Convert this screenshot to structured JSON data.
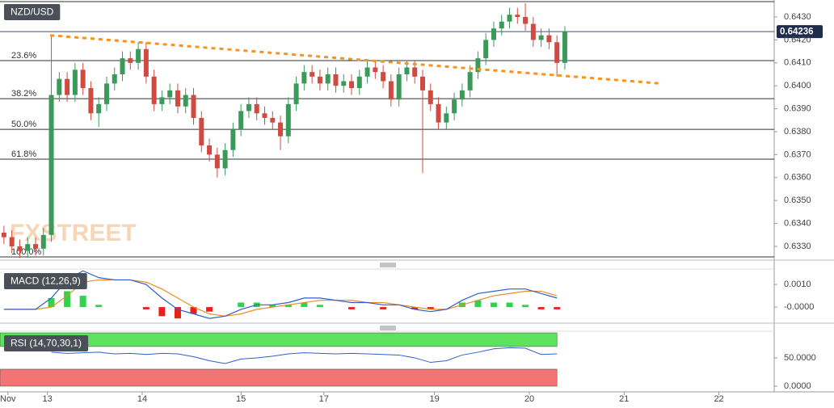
{
  "chart_data": [
    {
      "type": "candlestick",
      "title": "NZD/USD",
      "watermark": "FXSTREET",
      "x": [
        1,
        3,
        5,
        7,
        9,
        11,
        13,
        15,
        17,
        19,
        21,
        23,
        25,
        27,
        29,
        31,
        33,
        35,
        37,
        39,
        41,
        43,
        45,
        47,
        49,
        51,
        53,
        55,
        57,
        59,
        61,
        63,
        65,
        67,
        69,
        71,
        73,
        75,
        77,
        79,
        81,
        83,
        85,
        87,
        89,
        91,
        93,
        95,
        97,
        99,
        101,
        103,
        105,
        107,
        109,
        111,
        113,
        115,
        117,
        119,
        121,
        123,
        125,
        127,
        129,
        131,
        133,
        135,
        137,
        139,
        141,
        143
      ],
      "open": [
        0.6336,
        0.6334,
        0.633,
        0.6328,
        0.6331,
        0.6329,
        0.6335,
        0.6396,
        0.6403,
        0.6396,
        0.6407,
        0.6399,
        0.6388,
        0.6392,
        0.6401,
        0.6405,
        0.6412,
        0.641,
        0.6416,
        0.6404,
        0.6392,
        0.6395,
        0.6398,
        0.6391,
        0.6396,
        0.6386,
        0.6374,
        0.637,
        0.6364,
        0.6372,
        0.6381,
        0.6389,
        0.6392,
        0.6388,
        0.6386,
        0.6384,
        0.6378,
        0.6392,
        0.6401,
        0.6406,
        0.6404,
        0.6401,
        0.6405,
        0.64,
        0.6402,
        0.6399,
        0.6404,
        0.6408,
        0.6406,
        0.6402,
        0.6394,
        0.6405,
        0.6408,
        0.6404,
        0.6398,
        0.6392,
        0.6384,
        0.6388,
        0.6394,
        0.6398,
        0.6406,
        0.6412,
        0.642,
        0.6425,
        0.6428,
        0.6431,
        0.643,
        0.6427,
        0.642,
        0.6422,
        0.6419,
        0.641
      ],
      "high": [
        0.6339,
        0.6337,
        0.6333,
        0.6334,
        0.6334,
        0.6338,
        0.6422,
        0.6406,
        0.6406,
        0.641,
        0.641,
        0.6402,
        0.6395,
        0.6404,
        0.6408,
        0.6415,
        0.6415,
        0.6419,
        0.6419,
        0.6407,
        0.6398,
        0.6401,
        0.6401,
        0.6399,
        0.6399,
        0.6389,
        0.6377,
        0.6373,
        0.6375,
        0.6384,
        0.6392,
        0.6395,
        0.6395,
        0.6391,
        0.6389,
        0.6387,
        0.6395,
        0.6404,
        0.6409,
        0.6409,
        0.6407,
        0.6408,
        0.6408,
        0.6405,
        0.6405,
        0.6407,
        0.6411,
        0.6411,
        0.6409,
        0.6405,
        0.6408,
        0.6411,
        0.6411,
        0.6407,
        0.6401,
        0.6395,
        0.6391,
        0.6397,
        0.6401,
        0.6409,
        0.6415,
        0.6423,
        0.6428,
        0.6431,
        0.6434,
        0.6434,
        0.6436,
        0.643,
        0.6425,
        0.6425,
        0.6422,
        0.6426
      ],
      "low": [
        0.6331,
        0.6327,
        0.6325,
        0.6325,
        0.6326,
        0.6326,
        0.6332,
        0.6393,
        0.6393,
        0.6393,
        0.6396,
        0.6385,
        0.6382,
        0.6389,
        0.6398,
        0.6402,
        0.6407,
        0.6407,
        0.6401,
        0.6389,
        0.6389,
        0.6392,
        0.6388,
        0.6388,
        0.6383,
        0.6371,
        0.6367,
        0.636,
        0.6361,
        0.6369,
        0.6378,
        0.6386,
        0.6385,
        0.6383,
        0.6381,
        0.6372,
        0.6375,
        0.6389,
        0.6398,
        0.6401,
        0.6398,
        0.6398,
        0.6397,
        0.6397,
        0.6396,
        0.6396,
        0.6401,
        0.6403,
        0.6399,
        0.6391,
        0.6391,
        0.6402,
        0.6401,
        0.6362,
        0.6389,
        0.6381,
        0.6381,
        0.6385,
        0.6391,
        0.6395,
        0.6403,
        0.6409,
        0.6417,
        0.6422,
        0.6425,
        0.6427,
        0.6424,
        0.6417,
        0.6417,
        0.6416,
        0.6404,
        0.6407
      ],
      "close": [
        0.6334,
        0.633,
        0.6328,
        0.6331,
        0.6329,
        0.6335,
        0.6396,
        0.6403,
        0.6396,
        0.6407,
        0.6399,
        0.6388,
        0.6392,
        0.6401,
        0.6405,
        0.6412,
        0.641,
        0.6416,
        0.6404,
        0.6392,
        0.6395,
        0.6398,
        0.6391,
        0.6396,
        0.6386,
        0.6374,
        0.637,
        0.6364,
        0.6372,
        0.6381,
        0.6389,
        0.6392,
        0.6388,
        0.6386,
        0.6384,
        0.6378,
        0.6392,
        0.6401,
        0.6406,
        0.6404,
        0.6401,
        0.6405,
        0.64,
        0.6402,
        0.6399,
        0.6404,
        0.6408,
        0.6406,
        0.6402,
        0.6394,
        0.6405,
        0.6408,
        0.6404,
        0.6398,
        0.6392,
        0.6384,
        0.6388,
        0.6394,
        0.6398,
        0.6406,
        0.6412,
        0.642,
        0.6425,
        0.6428,
        0.6431,
        0.643,
        0.6427,
        0.642,
        0.6422,
        0.6419,
        0.641,
        0.64236
      ],
      "colors": {
        "up": "#3b9a5a",
        "down": "#cf4b41"
      },
      "xlim": [
        0,
        196
      ],
      "ylim": [
        0.6324,
        0.64374
      ],
      "yticks": [
        {
          "value": 0.633,
          "label": "0.6330"
        },
        {
          "value": 0.634,
          "label": "0.6340"
        },
        {
          "value": 0.635,
          "label": "0.6350"
        },
        {
          "value": 0.636,
          "label": "0.6360"
        },
        {
          "value": 0.637,
          "label": "0.6370"
        },
        {
          "value": 0.638,
          "label": "0.6380"
        },
        {
          "value": 0.639,
          "label": "0.6390"
        },
        {
          "value": 0.64,
          "label": "0.6400"
        },
        {
          "value": 0.641,
          "label": "0.6410"
        },
        {
          "value": 0.642,
          "label": "0.6420"
        },
        {
          "value": 0.643,
          "label": "0.6430"
        }
      ],
      "last_price": {
        "value": 0.64236,
        "label": "0.64236"
      },
      "fib_levels": {
        "labels": [
          null,
          "23.6%",
          "38.2%",
          "50.0%",
          "61.8%",
          "100.0%"
        ],
        "values": [
          0.64367,
          0.6411,
          0.63944,
          0.6381,
          0.6368,
          0.63254
        ]
      },
      "trendline": {
        "x": [
          12.7,
          167.3
        ],
        "values": [
          0.6422,
          0.6401
        ],
        "color": "#f7931e"
      }
    },
    {
      "type": "macd",
      "title": "MACD (12,26,9)",
      "x": [
        1,
        5,
        9,
        13,
        17,
        21,
        25,
        29,
        33,
        37,
        41,
        45,
        49,
        53,
        57,
        61,
        65,
        69,
        73,
        77,
        81,
        85,
        89,
        93,
        97,
        101,
        105,
        109,
        113,
        117,
        121,
        125,
        129,
        133,
        137,
        141
      ],
      "macd": [
        -0.0001,
        -0.0001,
        -0.0001,
        0.0004,
        0.0012,
        0.0016,
        0.0013,
        0.0012,
        0.0012,
        0.001,
        0.0004,
        -0.0001,
        -0.0003,
        -0.0005,
        -0.0004,
        -0.0001,
        0.0001,
        0.0001,
        0.0002,
        0.0004,
        0.0004,
        0.0003,
        0.0002,
        0.0002,
        0.0001,
        0.0001,
        -0.0001,
        -0.0002,
        -0.0001,
        0.0003,
        0.0006,
        0.0007,
        0.0008,
        0.0008,
        0.0006,
        0.0004
      ],
      "signal": [
        -0.0001,
        -0.0001,
        -0.0001,
        0,
        0.0005,
        0.0011,
        0.0012,
        0.0012,
        0.0012,
        0.0011,
        0.0008,
        0.0004,
        0,
        -0.0003,
        -0.0004,
        -0.0003,
        -0.0001,
        0,
        0.0001,
        0.0002,
        0.0003,
        0.0003,
        0.0003,
        0.0002,
        0.0002,
        0.0001,
        0,
        -0.0001,
        -0.0001,
        0.0001,
        0.0003,
        0.0005,
        0.0006,
        0.0007,
        0.0007,
        0.0005
      ],
      "histogram": [
        0,
        0,
        0,
        0.0004,
        0.0007,
        0.0005,
        0.0001,
        0,
        0,
        -0.0001,
        -0.0004,
        -0.0005,
        -0.0003,
        -0.0002,
        0,
        0.0002,
        0.0002,
        0.0001,
        0.0001,
        0.0002,
        0.0001,
        0,
        -0.0001,
        0,
        -0.0001,
        0,
        -0.0001,
        -0.0001,
        0,
        0.0002,
        0.0003,
        0.0002,
        0.0002,
        0.0001,
        -0.0001,
        -0.0001
      ],
      "colors": {
        "macd": "#2f5fd0",
        "signal": "#f08a24",
        "up": "#32d24a",
        "down": "#e8201c"
      },
      "xlim": [
        0,
        196
      ],
      "ylim": [
        -0.00071,
        0.00168
      ],
      "yticks": [
        {
          "value": 0.001,
          "label": "0.0010"
        },
        {
          "value": 0,
          "label": "-0.0000"
        }
      ]
    },
    {
      "type": "rsi",
      "title": "RSI (14,70,30,1)",
      "x": [
        13,
        17,
        21,
        25,
        29,
        33,
        37,
        41,
        45,
        49,
        53,
        57,
        61,
        65,
        69,
        73,
        77,
        81,
        85,
        89,
        93,
        97,
        101,
        105,
        109,
        113,
        117,
        121,
        125,
        129,
        133,
        137,
        141
      ],
      "values": [
        60,
        58,
        59,
        60,
        57,
        58,
        56,
        58,
        57,
        52,
        45,
        40,
        48,
        50,
        53,
        57,
        59,
        58,
        57,
        58,
        57,
        56,
        55,
        50,
        42,
        45,
        55,
        60,
        66,
        68,
        67,
        56,
        57
      ],
      "color": "#2f5fd0",
      "overbought": 70,
      "oversold": 30,
      "zone_colors": {
        "overbought": "#5ce25c",
        "oversold": "#f27474"
      },
      "xlim": [
        0,
        196
      ],
      "ylim": [
        -10,
        97
      ],
      "yticks": [
        {
          "value": 50,
          "label": "50.0000"
        },
        {
          "value": 0,
          "label": "0.0000"
        }
      ],
      "xticks": [
        {
          "value": 2,
          "label": "Nov"
        },
        {
          "value": 12,
          "label": "13"
        },
        {
          "value": 36,
          "label": "14"
        },
        {
          "value": 61,
          "label": "15"
        },
        {
          "value": 82,
          "label": "17"
        },
        {
          "value": 110,
          "label": "19"
        },
        {
          "value": 134,
          "label": "20"
        },
        {
          "value": 158,
          "label": "21"
        },
        {
          "value": 182,
          "label": "22"
        }
      ]
    }
  ]
}
